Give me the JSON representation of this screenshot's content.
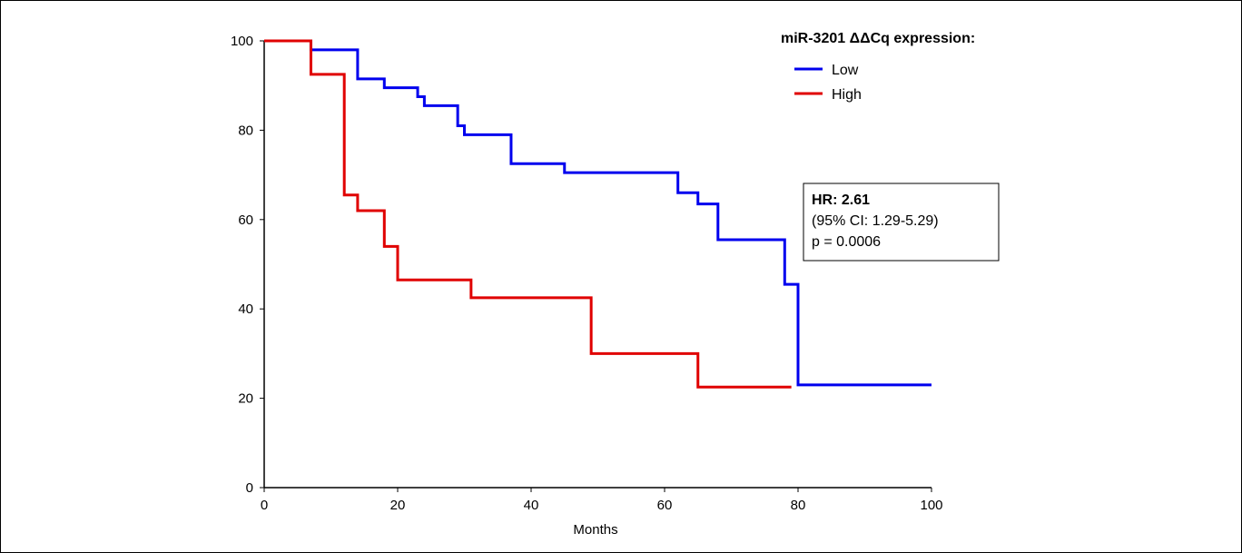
{
  "chart_data": {
    "type": "line",
    "step": true,
    "title": "",
    "xlabel": "Months",
    "ylabel": "",
    "xlim": [
      0,
      100
    ],
    "ylim": [
      0,
      100
    ],
    "xticks": [
      0,
      20,
      40,
      60,
      80,
      100
    ],
    "yticks": [
      0,
      20,
      40,
      60,
      80,
      100
    ],
    "grid": false,
    "legend": {
      "title": "miR-3201 ΔΔCq expression:",
      "placement": "top-right"
    },
    "series": [
      {
        "name": "Low",
        "color": "#0000ee",
        "x": [
          0,
          7,
          14,
          18,
          23,
          24,
          29,
          30,
          37,
          45,
          62,
          65,
          68,
          78,
          80,
          100
        ],
        "y": [
          100,
          98,
          91.5,
          89.5,
          87.5,
          85.5,
          81,
          79,
          72.5,
          70.5,
          66,
          63.5,
          55.5,
          45.5,
          23,
          23
        ]
      },
      {
        "name": "High",
        "color": "#e00000",
        "x": [
          0,
          7,
          12,
          14,
          18,
          20,
          31,
          49,
          65,
          79
        ],
        "y": [
          100,
          92.5,
          65.5,
          62,
          54,
          46.5,
          42.5,
          30,
          22.5,
          22.5
        ]
      }
    ],
    "annotation": {
      "hr": "HR: 2.61",
      "ci": "(95% CI: 1.29-5.29)",
      "p": "p = 0.0006"
    }
  }
}
